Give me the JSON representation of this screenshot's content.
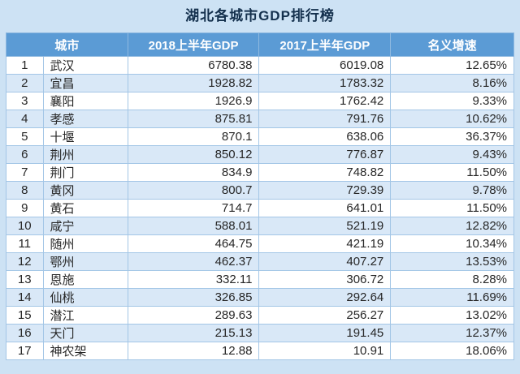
{
  "title": "湖北各城市GDP排行榜",
  "columns": {
    "city": "城市",
    "gdp2018": "2018上半年GDP",
    "gdp2017": "2017上半年GDP",
    "growth": "名义增速"
  },
  "colors": {
    "page_background": "#cde2f4",
    "header_background": "#5b9bd5",
    "header_text": "#ffffff",
    "row_alt_background": "#d9e8f7",
    "row_background": "#ffffff",
    "grid_line": "#a3c6e6",
    "title_text": "#14304d",
    "body_text": "#262626"
  },
  "chart_data": {
    "type": "table",
    "title": "湖北各城市GDP排行榜",
    "column_headers": [
      "城市",
      "2018上半年GDP",
      "2017上半年GDP",
      "名义增速"
    ],
    "rows": [
      {
        "rank": "1",
        "city": "武汉",
        "gdp2018": "6780.38",
        "gdp2017": "6019.08",
        "growth": "12.65%"
      },
      {
        "rank": "2",
        "city": "宜昌",
        "gdp2018": "1928.82",
        "gdp2017": "1783.32",
        "growth": "8.16%"
      },
      {
        "rank": "3",
        "city": "襄阳",
        "gdp2018": "1926.9",
        "gdp2017": "1762.42",
        "growth": "9.33%"
      },
      {
        "rank": "4",
        "city": "孝感",
        "gdp2018": "875.81",
        "gdp2017": "791.76",
        "growth": "10.62%"
      },
      {
        "rank": "5",
        "city": "十堰",
        "gdp2018": "870.1",
        "gdp2017": "638.06",
        "growth": "36.37%"
      },
      {
        "rank": "6",
        "city": "荆州",
        "gdp2018": "850.12",
        "gdp2017": "776.87",
        "growth": "9.43%"
      },
      {
        "rank": "7",
        "city": "荆门",
        "gdp2018": "834.9",
        "gdp2017": "748.82",
        "growth": "11.50%"
      },
      {
        "rank": "8",
        "city": "黄冈",
        "gdp2018": "800.7",
        "gdp2017": "729.39",
        "growth": "9.78%"
      },
      {
        "rank": "9",
        "city": "黄石",
        "gdp2018": "714.7",
        "gdp2017": "641.01",
        "growth": "11.50%"
      },
      {
        "rank": "10",
        "city": "咸宁",
        "gdp2018": "588.01",
        "gdp2017": "521.19",
        "growth": "12.82%"
      },
      {
        "rank": "11",
        "city": "随州",
        "gdp2018": "464.75",
        "gdp2017": "421.19",
        "growth": "10.34%"
      },
      {
        "rank": "12",
        "city": "鄂州",
        "gdp2018": "462.37",
        "gdp2017": "407.27",
        "growth": "13.53%"
      },
      {
        "rank": "13",
        "city": "恩施",
        "gdp2018": "332.11",
        "gdp2017": "306.72",
        "growth": "8.28%"
      },
      {
        "rank": "14",
        "city": "仙桃",
        "gdp2018": "326.85",
        "gdp2017": "292.64",
        "growth": "11.69%"
      },
      {
        "rank": "15",
        "city": "潜江",
        "gdp2018": "289.63",
        "gdp2017": "256.27",
        "growth": "13.02%"
      },
      {
        "rank": "16",
        "city": "天门",
        "gdp2018": "215.13",
        "gdp2017": "191.45",
        "growth": "12.37%"
      },
      {
        "rank": "17",
        "city": "神农架",
        "gdp2018": "12.88",
        "gdp2017": "10.91",
        "growth": "18.06%"
      }
    ]
  }
}
